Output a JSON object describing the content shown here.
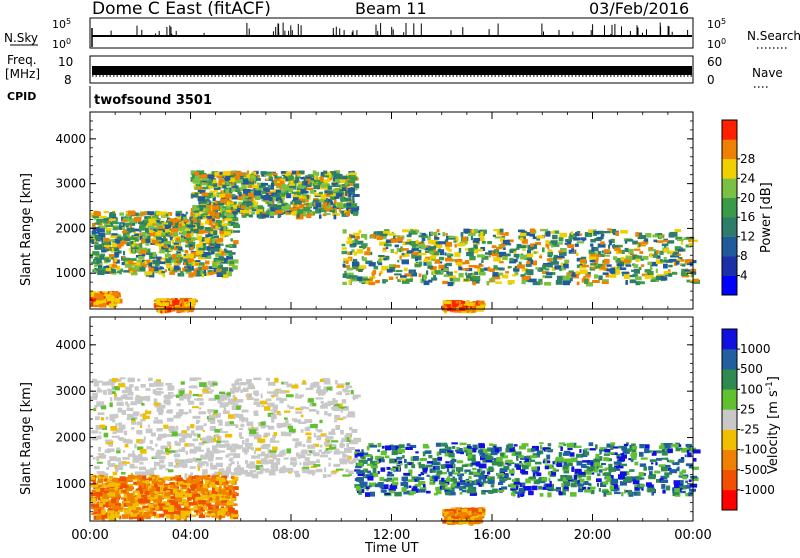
{
  "header": {
    "station": "Dome C East (fitACF)",
    "beam": "Beam 11",
    "date": "03/Feb/2016"
  },
  "labels": {
    "nsky": "N.Sky",
    "nsearch": "N.Search",
    "freq_line1": "Freq.",
    "freq_line2": "[MHz]",
    "nave": "Nave",
    "cpid": "CPID",
    "cpid_value": "twofsound 3501",
    "nsky_ticks": [
      "10^5",
      "10^0"
    ],
    "nsearch_ticks": [
      "10^5",
      "10^0"
    ],
    "freq_ticks": [
      "10",
      "8"
    ],
    "nave_ticks": [
      "60",
      "0"
    ]
  },
  "colors": {
    "power": [
      "#0000ff",
      "#1a2fa8",
      "#1f5b9c",
      "#2e7d6a",
      "#3a9a4a",
      "#7ac043",
      "#f0d000",
      "#f08000",
      "#ff2000"
    ],
    "velocity": [
      "#ff0000",
      "#f05000",
      "#f08000",
      "#f0c000",
      "#c8c8c8",
      "#60c030",
      "#2e8a50",
      "#2060a0",
      "#1010e0"
    ]
  },
  "chart_data": [
    {
      "type": "heatmap",
      "panel": "power",
      "xlabel": "",
      "ylabel": "Slant Range [km]",
      "yticks": [
        "1000",
        "2000",
        "3000",
        "4000"
      ],
      "ylim": [
        200,
        4600
      ],
      "colorbar_label": "Power [dB]",
      "colorbar_ticks": [
        "4",
        "8",
        "12",
        "16",
        "20",
        "24",
        "28"
      ],
      "xticks": [],
      "echo_bands": [
        {
          "t": [
            0.0,
            1.0
          ],
          "range": [
            300,
            600
          ],
          "level": "high"
        },
        {
          "t": [
            0.0,
            5.7
          ],
          "range": [
            1000,
            2400
          ],
          "level": "mid"
        },
        {
          "t": [
            4.0,
            10.5
          ],
          "range": [
            2300,
            3300
          ],
          "level": "mid"
        },
        {
          "t": [
            10.0,
            24.0
          ],
          "range": [
            800,
            2000
          ],
          "level": "mid"
        },
        {
          "t": [
            2.5,
            4.0
          ],
          "range": [
            200,
            450
          ],
          "level": "high"
        },
        {
          "t": [
            14.0,
            15.5
          ],
          "range": [
            200,
            400
          ],
          "level": "high"
        }
      ]
    },
    {
      "type": "heatmap",
      "panel": "velocity",
      "xlabel": "Time UT",
      "ylabel": "Slant Range [km]",
      "yticks": [
        "1000",
        "2000",
        "3000",
        "4000"
      ],
      "ylim": [
        200,
        4600
      ],
      "colorbar_label": "Velocity [m s^-1]",
      "colorbar_ticks": [
        "1000",
        "500",
        "100",
        "25",
        "-25",
        "-100",
        "-500",
        "-1000"
      ],
      "xticks": [
        "00:00",
        "04:00",
        "08:00",
        "12:00",
        "16:00",
        "20:00",
        "00:00"
      ],
      "xlim_hours": [
        0,
        24
      ],
      "echo_bands": [
        {
          "t": [
            0.0,
            10.5
          ],
          "range": [
            1200,
            3300
          ],
          "level": "low"
        },
        {
          "t": [
            0.0,
            5.7
          ],
          "range": [
            300,
            1200
          ],
          "level": "negative"
        },
        {
          "t": [
            10.5,
            24.0
          ],
          "range": [
            800,
            1900
          ],
          "level": "positive"
        },
        {
          "t": [
            14.0,
            15.5
          ],
          "range": [
            200,
            500
          ],
          "level": "negative"
        }
      ]
    }
  ]
}
